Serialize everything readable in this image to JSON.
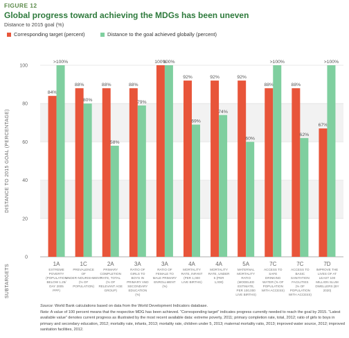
{
  "figure_label": "FIGURE 12",
  "title": "Global progress toward achieving the MDGs has been uneven",
  "subtitle": "Distance to 2015 goal (%)",
  "colors": {
    "target": "#e8553a",
    "achieved": "#7fcf9f",
    "title": "#2e7a3c",
    "axis_text": "#666666",
    "grid": "#e3e3e3",
    "band": "#f2f2f2"
  },
  "notes": {
    "source_label": "Source:",
    "source_text": "World Bank calculations based on data from the World Development Indicators database.",
    "note_label": "Note:",
    "note_text": "A value of 100 percent means that the respective MDG has been achieved. “Corresponding target” indicates progress currently needed to reach the goal by 2015. “Latest available value” denotes current progress as illustrated by the most recent available data: extreme poverty, 2011; primary completion rate, total, 2012; ratio of girls to boys in primary and secondary education, 2012; mortality rate, infants, 2013; mortality rate, children under 5, 2013; maternal mortality ratio, 2013; improved water source, 2012; improved sanitation facilities, 2012."
  },
  "chart_data": {
    "type": "bar",
    "ylabel": "DISTANCE TO 2015 GOAL (PERCENTAGE)",
    "xlabel": "SUBTARGETS",
    "ylim": [
      0,
      100
    ],
    "yticks": [
      0,
      20,
      40,
      60,
      80,
      100
    ],
    "grid": true,
    "legend_position": "top",
    "categories": [
      "1A",
      "1C",
      "2A",
      "3A",
      "3A",
      "4A",
      "4A",
      "5A",
      "7C",
      "7C",
      "7D"
    ],
    "category_descriptions": [
      "EXTREME POVERTY (POPULATION BELOW 1.25/ DAY 2005 PPP)",
      "PREVALENCE OF UNDER-NOURISHMENT (% OF POPULATION)",
      "PRIMARY COMPLETION RATE, TOTAL (% OF RELEVANT AGE GROUP)",
      "RATIO OF GIRLS TO BOYS IN PRIMARY AND SECONDARY EDUCATION (%)",
      "RATIO OF FEMALE TO MALE PRIMARY ENROLLMENT (%)",
      "MORTALITY RATE, INFANT (PER 1,000 LIVE BIRTHS)",
      "MORTALITY RATE, UNDER 5 (PER 1,000)",
      "MATERNAL MORTALITY RATIO (MODELED ESTIMATE, PER 100,000 LIVE BIRTHS)",
      "ACCESS TO SAFE DRINKING WATER (% OF POPULATION WITH ACCESS)",
      "ACCESS TO BASIC SANITATION FACILITIES (% OF POPULATION WITH ACCESS)",
      "IMPROVE THE LIVES OF AT LEAST 100 MILLION SLUM DWELLERS (BY 2020)"
    ],
    "series": [
      {
        "name": "Corresponding target (percent)",
        "values": [
          84,
          88,
          88,
          88,
          100,
          92,
          92,
          92,
          88,
          88,
          67
        ],
        "labels": [
          "84%",
          "88%",
          "88%",
          "88%",
          "100%",
          "92%",
          "92%",
          "92%",
          "88%",
          "88%",
          "67%"
        ]
      },
      {
        "name": "Distance to the goal achieved globally (percent)",
        "values": [
          100,
          80,
          58,
          79,
          100,
          69,
          74,
          60,
          100,
          62,
          100
        ],
        "labels": [
          ">100%",
          "80%",
          "58%",
          "79%",
          "100%",
          "69%",
          "74%",
          "60%",
          ">100%",
          "62%",
          ">100%"
        ]
      }
    ]
  }
}
